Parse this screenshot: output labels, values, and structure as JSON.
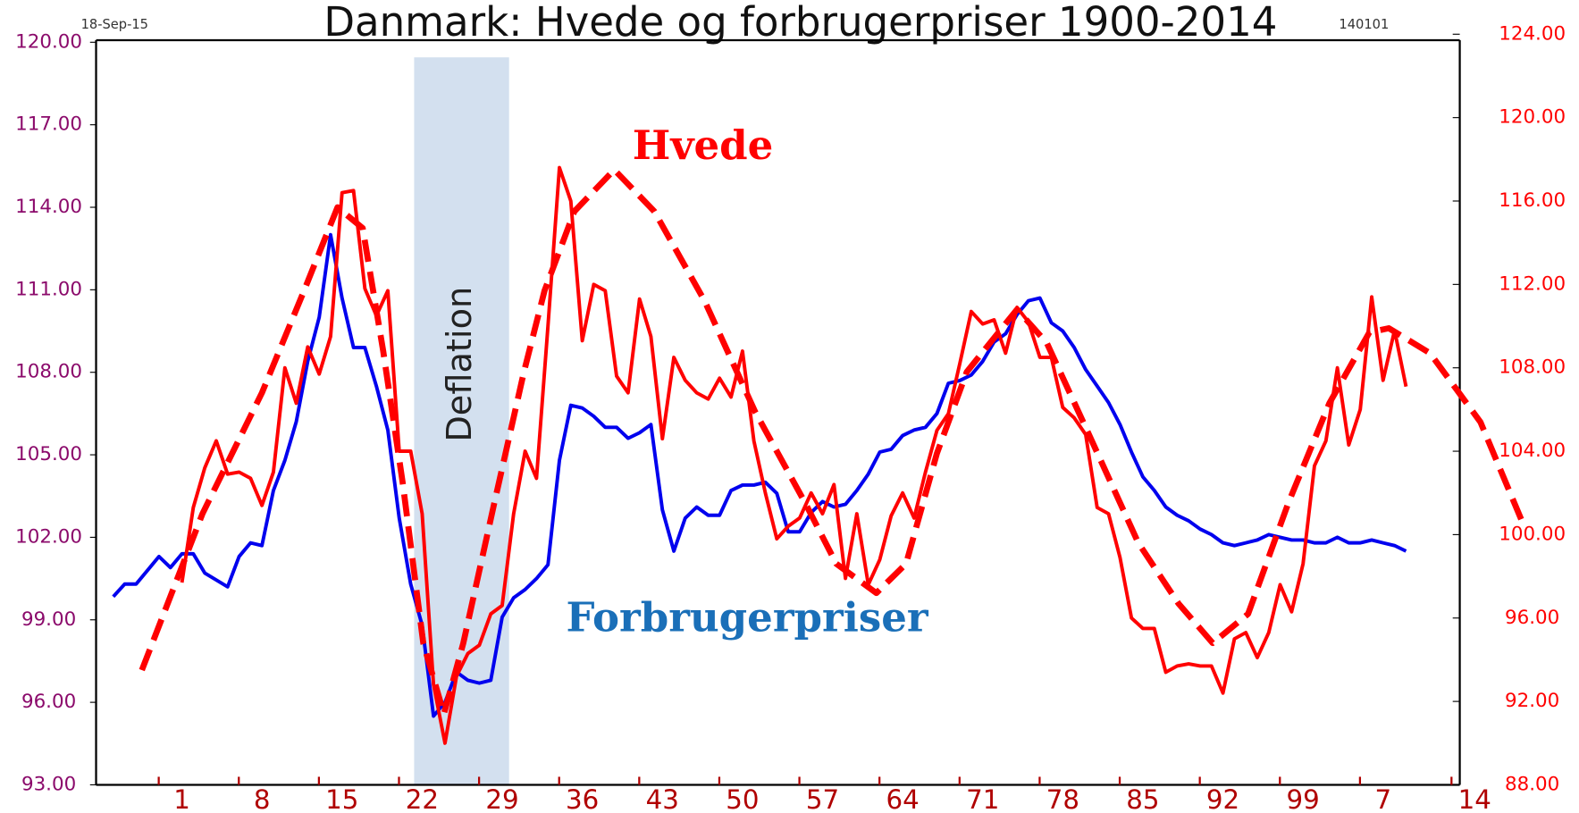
{
  "chart_data": {
    "type": "line",
    "title": "Danmark: Hvede og forbrugerpriser 1900-2014",
    "date": "18-Sep-15",
    "code": "140101",
    "annotations": [
      "Hvede",
      "Forbrugerpriser"
    ],
    "shade": {
      "label": "Deflation",
      "x": [
        1921.3,
        1929.6
      ],
      "color": "#d3e0ef"
    },
    "xlim": [
      1893.5,
      2012.7
    ],
    "xticks": [
      {
        "value": 1901,
        "label": "1"
      },
      {
        "value": 1908,
        "label": "8"
      },
      {
        "value": 1915,
        "label": "15"
      },
      {
        "value": 1922,
        "label": "22"
      },
      {
        "value": 1929,
        "label": "29"
      },
      {
        "value": 1936,
        "label": "36"
      },
      {
        "value": 1943,
        "label": "43"
      },
      {
        "value": 1950,
        "label": "50"
      },
      {
        "value": 1957,
        "label": "57"
      },
      {
        "value": 1964,
        "label": "64"
      },
      {
        "value": 1971,
        "label": "71"
      },
      {
        "value": 1978,
        "label": "78"
      },
      {
        "value": 1985,
        "label": "85"
      },
      {
        "value": 1992,
        "label": "92"
      },
      {
        "value": 1999,
        "label": "99"
      },
      {
        "value": 2006,
        "label": "7"
      },
      {
        "value": 2014,
        "label": "14"
      }
    ],
    "ylim": [
      93,
      120
    ],
    "yticks": [
      {
        "value": 93,
        "label": "93.00"
      },
      {
        "value": 96,
        "label": "96.00"
      },
      {
        "value": 99,
        "label": "99.00"
      },
      {
        "value": 102,
        "label": "102.00"
      },
      {
        "value": 105,
        "label": "105.00"
      },
      {
        "value": 108,
        "label": "108.00"
      },
      {
        "value": 111,
        "label": "111.00"
      },
      {
        "value": 114,
        "label": "114.00"
      },
      {
        "value": 117,
        "label": "117.00"
      },
      {
        "value": 120,
        "label": "120.00"
      }
    ],
    "y2lim": [
      88,
      124
    ],
    "y2ticks": [
      {
        "value": 88,
        "label": "88.00"
      },
      {
        "value": 92,
        "label": "92.00"
      },
      {
        "value": 96,
        "label": "96.00"
      },
      {
        "value": 100,
        "label": "100.00"
      },
      {
        "value": 104,
        "label": "104.00"
      },
      {
        "value": 108,
        "label": "108.00"
      },
      {
        "value": 112,
        "label": "112.00"
      },
      {
        "value": 116,
        "label": "116.00"
      },
      {
        "value": 120,
        "label": "120.00"
      },
      {
        "value": 124,
        "label": "124.00"
      }
    ],
    "series": [
      {
        "color": "#0000ee",
        "axis": "y",
        "style": "solid",
        "x": [
          1895,
          1896,
          1897,
          1899,
          1900,
          1901,
          1902,
          1903,
          1905,
          1906,
          1907,
          1908,
          1909,
          1910,
          1911,
          1912,
          1913,
          1914,
          1915,
          1916,
          1917,
          1918,
          1919,
          1920,
          1921,
          1922,
          1923,
          1924,
          1925,
          1926,
          1927,
          1928,
          1929,
          1930,
          1931,
          1932,
          1933,
          1934,
          1935,
          1936,
          1937,
          1938,
          1939,
          1940,
          1941,
          1942,
          1943,
          1944,
          1945,
          1946,
          1947,
          1948,
          1949,
          1950,
          1951,
          1952,
          1953,
          1954,
          1955,
          1956,
          1957,
          1958,
          1959,
          1960,
          1961,
          1962,
          1963,
          1964,
          1965,
          1966,
          1967,
          1968,
          1969,
          1970,
          1971,
          1972,
          1973,
          1974,
          1975,
          1976,
          1977,
          1978,
          1979,
          1980,
          1981,
          1982,
          1983,
          1984,
          1985,
          1986,
          1987,
          1988,
          1989,
          1990,
          1991,
          1992,
          1993,
          1994,
          1995,
          1996,
          1997,
          1998,
          1999,
          2000,
          2001,
          2002,
          2003,
          2004,
          2005,
          2006,
          2007,
          2008
        ],
        "values": [
          99.84,
          100.3,
          100.3,
          101.3,
          100.9,
          101.4,
          101.4,
          100.7,
          100.2,
          101.3,
          101.8,
          101.7,
          103.7,
          104.8,
          106.2,
          108.4,
          110.0,
          113.0,
          110.7,
          108.9,
          108.9,
          107.5,
          105.9,
          102.7,
          100.3,
          98.8,
          95.5,
          96.0,
          97.1,
          96.8,
          96.7,
          96.8,
          99.1,
          99.8,
          100.1,
          100.5,
          101.0,
          104.8,
          106.8,
          106.7,
          106.4,
          106.0,
          106.0,
          105.6,
          105.8,
          106.1,
          103.0,
          101.5,
          102.7,
          103.1,
          102.8,
          102.8,
          103.7,
          103.9,
          103.9,
          104.0,
          103.6,
          102.2,
          102.2,
          102.9,
          103.3,
          103.1,
          103.2,
          103.7,
          104.3,
          105.1,
          105.2,
          105.7,
          105.9,
          106.0,
          106.5,
          107.6,
          107.7,
          107.9,
          108.4,
          109.1,
          109.4,
          110.1,
          110.6,
          110.7,
          109.8,
          109.5,
          108.9,
          108.1,
          107.5,
          106.9,
          106.1,
          105.1,
          104.2,
          103.7,
          103.1,
          102.8,
          102.6,
          102.3,
          102.1,
          101.8,
          101.7,
          101.8,
          101.9,
          102.1,
          102.0,
          101.9,
          101.9,
          101.8,
          101.8,
          102.0,
          101.8,
          101.8,
          101.9,
          101.8,
          101.7,
          101.5
        ]
      },
      {
        "color": "#ff0000",
        "axis": "y2",
        "style": "solid",
        "x": [
          1901,
          1902,
          1903,
          1904,
          1905,
          1906,
          1907,
          1908,
          1909,
          1910,
          1911,
          1912,
          1913,
          1914,
          1915,
          1916,
          1917,
          1918,
          1919,
          1920,
          1921,
          1922,
          1923,
          1924,
          1925,
          1926,
          1927,
          1928,
          1929,
          1930,
          1931,
          1932,
          1933,
          1934,
          1935,
          1936,
          1937,
          1938,
          1939,
          1940,
          1941,
          1942,
          1943,
          1944,
          1945,
          1946,
          1947,
          1948,
          1949,
          1950,
          1951,
          1952,
          1953,
          1954,
          1955,
          1956,
          1957,
          1958,
          1959,
          1960,
          1961,
          1962,
          1963,
          1964,
          1965,
          1966,
          1967,
          1968,
          1969,
          1970,
          1971,
          1972,
          1973,
          1974,
          1975,
          1976,
          1977,
          1978,
          1979,
          1980,
          1981,
          1982,
          1983,
          1984,
          1985,
          1986,
          1987,
          1988,
          1989,
          1990,
          1991,
          1992,
          1993,
          1994,
          1995,
          1996,
          1997,
          1998,
          1999,
          2000,
          2001,
          2002,
          2003,
          2004,
          2005,
          2006,
          2007,
          2008
        ],
        "values": [
          97.7,
          101.3,
          103.2,
          104.5,
          102.9,
          103.0,
          102.7,
          101.4,
          103.0,
          108.0,
          106.3,
          109.0,
          107.7,
          109.5,
          116.4,
          116.5,
          111.8,
          110.5,
          111.7,
          104.0,
          104.0,
          101.0,
          92.8,
          90.0,
          93.2,
          94.3,
          94.7,
          96.2,
          96.6,
          101.0,
          104.0,
          102.7,
          110.0,
          117.6,
          116.0,
          109.3,
          112.0,
          111.7,
          107.6,
          106.8,
          111.3,
          109.5,
          104.6,
          108.5,
          107.4,
          106.8,
          106.5,
          107.5,
          106.6,
          108.8,
          104.5,
          102.0,
          99.8,
          100.4,
          100.8,
          102.0,
          101.0,
          102.4,
          97.9,
          101.0,
          97.6,
          98.8,
          100.9,
          102.0,
          100.8,
          103.0,
          105.0,
          105.8,
          108.2,
          110.7,
          110.1,
          110.3,
          108.7,
          110.9,
          110.2,
          108.5,
          108.5,
          106.1,
          105.6,
          104.8,
          101.3,
          101.0,
          98.9,
          96.0,
          95.5,
          95.5,
          93.4,
          93.7,
          93.8,
          93.7,
          93.7,
          92.4,
          95.0,
          95.3,
          94.1,
          95.3,
          97.6,
          96.3,
          98.6,
          103.3,
          104.5,
          108.0,
          104.3,
          106.0,
          111.4,
          107.4,
          109.8,
          107.1
        ]
      },
      {
        "color": "#ff0000",
        "axis": "y2",
        "style": "dashed",
        "x": [
          1897.5,
          1902.8,
          1908.0,
          1911.6,
          1914.6,
          1916.8,
          1918.6,
          1920.3,
          1922.1,
          1923.9,
          1925.6,
          1928.3,
          1930.9,
          1932.7,
          1935.3,
          1938.8,
          1942.3,
          1946.7,
          1951.1,
          1955.5,
          1958.2,
          1961.7,
          1964.3,
          1967.0,
          1969.6,
          1974.0,
          1976.6,
          1980.2,
          1984.6,
          1988.1,
          1991.1,
          1994.2,
          1997.7,
          2001.3,
          2004.8,
          2006.5,
          2010.1,
          2014.5,
          2018.4
        ],
        "values": [
          93.5,
          101.0,
          106.8,
          111.6,
          115.7,
          114.7,
          108.8,
          102.5,
          94.8,
          91.4,
          94.8,
          101.5,
          107.8,
          111.7,
          115.5,
          117.5,
          115.5,
          111.2,
          105.9,
          101.5,
          98.6,
          97.2,
          98.6,
          103.9,
          107.8,
          110.8,
          109.2,
          104.9,
          99.6,
          96.7,
          94.8,
          96.2,
          101.5,
          106.3,
          109.7,
          109.9,
          108.7,
          105.4,
          100.3
        ]
      }
    ]
  }
}
